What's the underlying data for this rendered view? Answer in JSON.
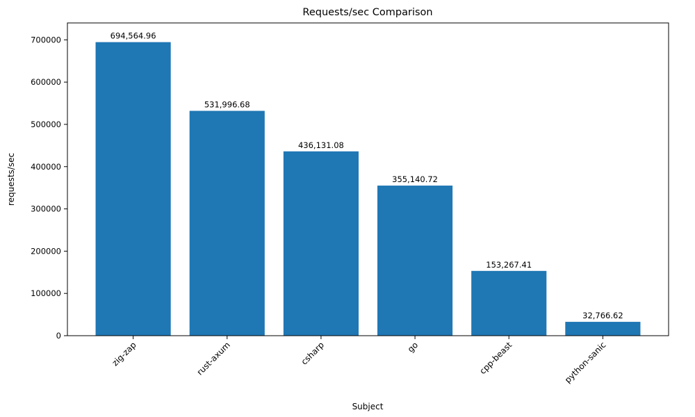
{
  "chart_data": {
    "type": "bar",
    "title": "Requests/sec Comparison",
    "xlabel": "Subject",
    "ylabel": "requests/sec",
    "categories": [
      "zig-zap",
      "rust-axum",
      "csharp",
      "go",
      "cpp-beast",
      "python-sanic"
    ],
    "values": [
      694564.96,
      531996.68,
      436131.08,
      355140.72,
      153267.41,
      32766.62
    ],
    "value_labels": [
      "694,564.96",
      "531,996.68",
      "436,131.08",
      "355,140.72",
      "153,267.41",
      "32,766.62"
    ],
    "ylim": [
      0,
      740000
    ],
    "yticks": [
      0,
      100000,
      200000,
      300000,
      400000,
      500000,
      600000,
      700000
    ],
    "bar_color": "#1f77b4",
    "axis_color": "#000000",
    "background": "#ffffff",
    "grid": false,
    "legend_position": "none",
    "x_tick_rotation": 45
  }
}
